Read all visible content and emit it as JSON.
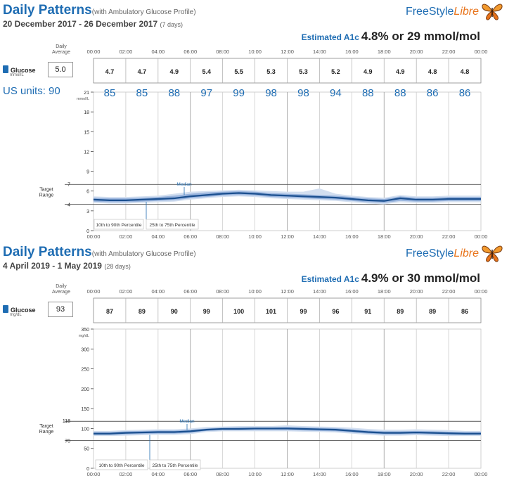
{
  "panels": [
    {
      "title": "Daily Patterns",
      "subtitle": "(with Ambulatory Glucose Profile)",
      "date_range": "20 December 2017 - 26 December 2017",
      "days": "(7 days)",
      "brand": {
        "main": "FreeStyle",
        "accent": "Libre"
      },
      "a1c_label": "Estimated A1c",
      "a1c_value": "4.8% or 29 mmol/mol",
      "daily_average_label": [
        "Daily",
        "Average"
      ],
      "glucose_label": "Glucose",
      "glucose_unit": "mmol/L",
      "daily_average": "5.0",
      "us_units_label": "US units: 90",
      "percentile_10_90": "10th to 90th Percentile",
      "percentile_25_75": "25th to 75th Percentile",
      "median_label": "Median",
      "target_label": [
        "Target",
        "Range"
      ]
    },
    {
      "title": "Daily Patterns",
      "subtitle": "(with Ambulatory Glucose Profile)",
      "date_range": "4 April 2019 - 1 May 2019",
      "days": "(28 days)",
      "brand": {
        "main": "FreeStyle",
        "accent": "Libre"
      },
      "a1c_label": "Estimated A1c",
      "a1c_value": "4.9% or 30 mmol/mol",
      "daily_average_label": [
        "Daily",
        "Average"
      ],
      "glucose_label": "Glucose",
      "glucose_unit": "mg/dL",
      "daily_average": "93",
      "percentile_10_90": "10th to 90th Percentile",
      "percentile_25_75": "25th to 75th Percentile",
      "median_label": "Median",
      "target_label": [
        "Target",
        "Range"
      ]
    }
  ],
  "colors": {
    "title_blue": "#1f6db3",
    "band_10_90": "#d3dff0",
    "band_25_75": "#8faedb",
    "median": "#1a4f8f",
    "annotation_blue": "#1f6db3",
    "libre_orange": "#e8731a"
  },
  "chart_data": [
    {
      "type": "area",
      "x_tick_labels": [
        "00:00",
        "02:00",
        "04:00",
        "06:00",
        "08:00",
        "10:00",
        "12:00",
        "14:00",
        "16:00",
        "18:00",
        "20:00",
        "22:00",
        "00:00"
      ],
      "bin_averages": [
        "4.7",
        "4.7",
        "4.9",
        "5.4",
        "5.5",
        "5.3",
        "5.3",
        "5.2",
        "4.9",
        "4.9",
        "4.8",
        "4.8"
      ],
      "us_unit_values": [
        "85",
        "85",
        "88",
        "97",
        "99",
        "98",
        "98",
        "94",
        "88",
        "88",
        "86",
        "86"
      ],
      "y_unit": "mmol/L",
      "ylim": [
        0,
        21
      ],
      "y_ticks": [
        "0",
        "3",
        "6",
        "9",
        "12",
        "15",
        "18",
        "21"
      ],
      "target_range": [
        4,
        7
      ],
      "target_tick_labels": [
        "4",
        "7"
      ],
      "x_hours": [
        0,
        1,
        2,
        3,
        4,
        5,
        6,
        7,
        8,
        9,
        10,
        11,
        12,
        13,
        14,
        15,
        16,
        17,
        18,
        19,
        20,
        21,
        22,
        23,
        24
      ],
      "median": [
        4.7,
        4.6,
        4.6,
        4.7,
        4.8,
        4.9,
        5.2,
        5.4,
        5.6,
        5.7,
        5.6,
        5.4,
        5.3,
        5.2,
        5.1,
        5.0,
        4.8,
        4.6,
        4.5,
        4.9,
        4.7,
        4.7,
        4.8,
        4.8,
        4.8
      ],
      "p25": [
        4.4,
        4.3,
        4.3,
        4.4,
        4.5,
        4.6,
        4.9,
        5.1,
        5.3,
        5.4,
        5.3,
        5.1,
        5.0,
        4.9,
        4.8,
        4.7,
        4.5,
        4.3,
        4.2,
        4.5,
        4.4,
        4.4,
        4.5,
        4.5,
        4.5
      ],
      "p75": [
        5.0,
        4.9,
        4.9,
        5.0,
        5.1,
        5.3,
        5.6,
        5.8,
        5.9,
        6.0,
        5.9,
        5.7,
        5.6,
        5.5,
        5.4,
        5.3,
        5.1,
        4.9,
        4.8,
        5.2,
        5.0,
        5.0,
        5.1,
        5.1,
        5.1
      ],
      "p10": [
        4.2,
        4.1,
        4.1,
        4.2,
        4.3,
        4.4,
        4.7,
        4.9,
        5.1,
        5.2,
        5.1,
        4.9,
        4.8,
        4.7,
        4.6,
        4.5,
        4.3,
        4.1,
        4.0,
        4.3,
        4.2,
        4.2,
        4.3,
        4.3,
        4.3
      ],
      "p90": [
        5.2,
        5.1,
        5.1,
        5.2,
        5.3,
        5.6,
        5.9,
        6.0,
        6.1,
        6.2,
        6.1,
        6.0,
        5.9,
        5.9,
        6.4,
        5.6,
        5.3,
        5.1,
        5.0,
        5.4,
        5.2,
        5.2,
        5.3,
        5.3,
        5.3
      ]
    },
    {
      "type": "area",
      "x_tick_labels": [
        "00:00",
        "02:00",
        "04:00",
        "06:00",
        "08:00",
        "10:00",
        "12:00",
        "14:00",
        "16:00",
        "18:00",
        "20:00",
        "22:00",
        "00:00"
      ],
      "bin_averages": [
        "87",
        "89",
        "90",
        "99",
        "100",
        "101",
        "99",
        "96",
        "91",
        "89",
        "89",
        "86"
      ],
      "y_unit": "mg/dL",
      "ylim": [
        0,
        350
      ],
      "y_ticks": [
        "0",
        "50",
        "100",
        "150",
        "200",
        "250",
        "300",
        "350"
      ],
      "target_range": [
        70,
        118
      ],
      "target_tick_labels": [
        "70",
        "118"
      ],
      "x_hours": [
        0,
        1,
        2,
        3,
        4,
        5,
        6,
        7,
        8,
        9,
        10,
        11,
        12,
        13,
        14,
        15,
        16,
        17,
        18,
        19,
        20,
        21,
        22,
        23,
        24
      ],
      "median": [
        87,
        87,
        89,
        90,
        91,
        91,
        93,
        97,
        99,
        99,
        100,
        100,
        100,
        99,
        98,
        97,
        94,
        91,
        89,
        89,
        90,
        89,
        88,
        87,
        87
      ],
      "p25": [
        84,
        84,
        85,
        86,
        87,
        87,
        89,
        94,
        96,
        96,
        96,
        96,
        96,
        95,
        94,
        93,
        90,
        87,
        85,
        85,
        86,
        85,
        84,
        84,
        84
      ],
      "p75": [
        91,
        91,
        93,
        94,
        95,
        95,
        97,
        100,
        102,
        103,
        103,
        103,
        104,
        103,
        102,
        101,
        98,
        95,
        93,
        93,
        94,
        93,
        92,
        91,
        91
      ],
      "p10": [
        81,
        81,
        82,
        83,
        84,
        84,
        86,
        91,
        93,
        93,
        93,
        93,
        93,
        92,
        91,
        90,
        87,
        84,
        82,
        82,
        83,
        82,
        81,
        81,
        81
      ],
      "p90": [
        94,
        94,
        96,
        97,
        98,
        98,
        100,
        104,
        105,
        106,
        106,
        106,
        108,
        106,
        105,
        104,
        102,
        99,
        97,
        97,
        98,
        97,
        96,
        94,
        94
      ]
    }
  ]
}
